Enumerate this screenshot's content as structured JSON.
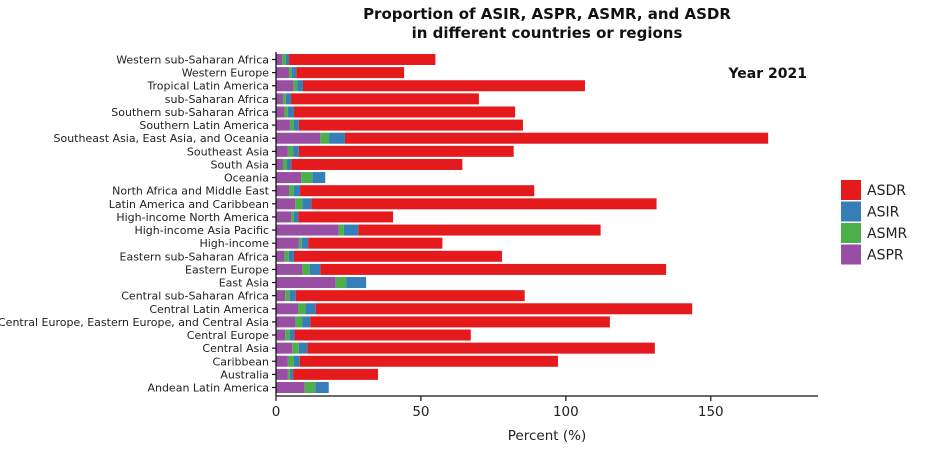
{
  "chart_data": {
    "type": "bar",
    "orientation": "horizontal",
    "stacked": true,
    "title": "Proportion of ASIR, ASPR, ASMR, and ASDR",
    "subtitle": "in different countries or regions",
    "annotation": "Year 2021",
    "xlabel": "Percent (%)",
    "ylabel": "",
    "xlim": [
      0,
      187
    ],
    "xticks": [
      0,
      50,
      100,
      150
    ],
    "xtick_labels": [
      "0",
      "50",
      "100",
      "150"
    ],
    "grid": false,
    "legend_position": "right",
    "categories": [
      "Western sub-Saharan Africa",
      "Western Europe",
      "Tropical Latin America",
      "sub-Saharan Africa",
      "Southern sub-Saharan Africa",
      "Southern Latin America",
      "Southeast Asia, East Asia, and Oceania",
      "Southeast Asia",
      "South Asia",
      "Oceania",
      "North Africa and Middle East",
      "Latin America and Caribbean",
      "High-income North America",
      "High-income Asia Pacific",
      "High-income",
      "Eastern sub-Saharan Africa",
      "Eastern Europe",
      "East Asia",
      "Central sub-Saharan Africa",
      "Central Latin America",
      "Central Europe, Eastern Europe, and Central Asia",
      "Central Europe",
      "Central Asia",
      "Caribbean",
      "Australia",
      "Andean Latin America"
    ],
    "stack_order": [
      "ASPR",
      "ASMR",
      "ASIR",
      "ASDR"
    ],
    "series": [
      {
        "name": "ASPR",
        "color": "#984EA3",
        "values": [
          2.1,
          4.5,
          6.0,
          2.4,
          3.0,
          4.8,
          15.3,
          4.1,
          2.4,
          8.7,
          4.5,
          6.6,
          5.3,
          21.6,
          7.9,
          3.0,
          9.1,
          20.6,
          3.2,
          7.6,
          6.7,
          3.2,
          5.6,
          4.1,
          4.1,
          9.9
        ]
      },
      {
        "name": "ASMR",
        "color": "#4DAF4A",
        "values": [
          1.3,
          1.0,
          1.3,
          1.0,
          1.1,
          1.4,
          3.0,
          1.8,
          1.4,
          3.8,
          1.6,
          2.5,
          0.9,
          1.8,
          1.0,
          1.4,
          2.5,
          3.6,
          1.5,
          2.6,
          2.3,
          1.5,
          2.3,
          2.1,
          0.7,
          3.7
        ]
      },
      {
        "name": "ASIR",
        "color": "#377EB8",
        "values": [
          1.1,
          1.5,
          2.0,
          1.8,
          2.1,
          1.7,
          5.5,
          2.0,
          1.5,
          4.5,
          2.2,
          3.1,
          1.5,
          5.0,
          2.2,
          1.8,
          3.7,
          6.9,
          2.1,
          3.5,
          2.8,
          1.7,
          2.9,
          2.0,
          1.1,
          4.6
        ]
      },
      {
        "name": "ASDR",
        "color": "#E41A1C",
        "values": [
          50.5,
          37.2,
          97.3,
          64.8,
          76.3,
          77.3,
          146.0,
          74.1,
          59.0,
          0,
          80.8,
          119.1,
          32.7,
          83.6,
          46.3,
          71.8,
          119.3,
          0,
          79.0,
          129.9,
          103.4,
          60.8,
          119.9,
          89.1,
          29.3,
          0
        ]
      }
    ],
    "legend": [
      {
        "name": "ASDR",
        "color": "#E41A1C"
      },
      {
        "name": "ASIR",
        "color": "#377EB8"
      },
      {
        "name": "ASMR",
        "color": "#4DAF4A"
      },
      {
        "name": "ASPR",
        "color": "#984EA3"
      }
    ]
  }
}
